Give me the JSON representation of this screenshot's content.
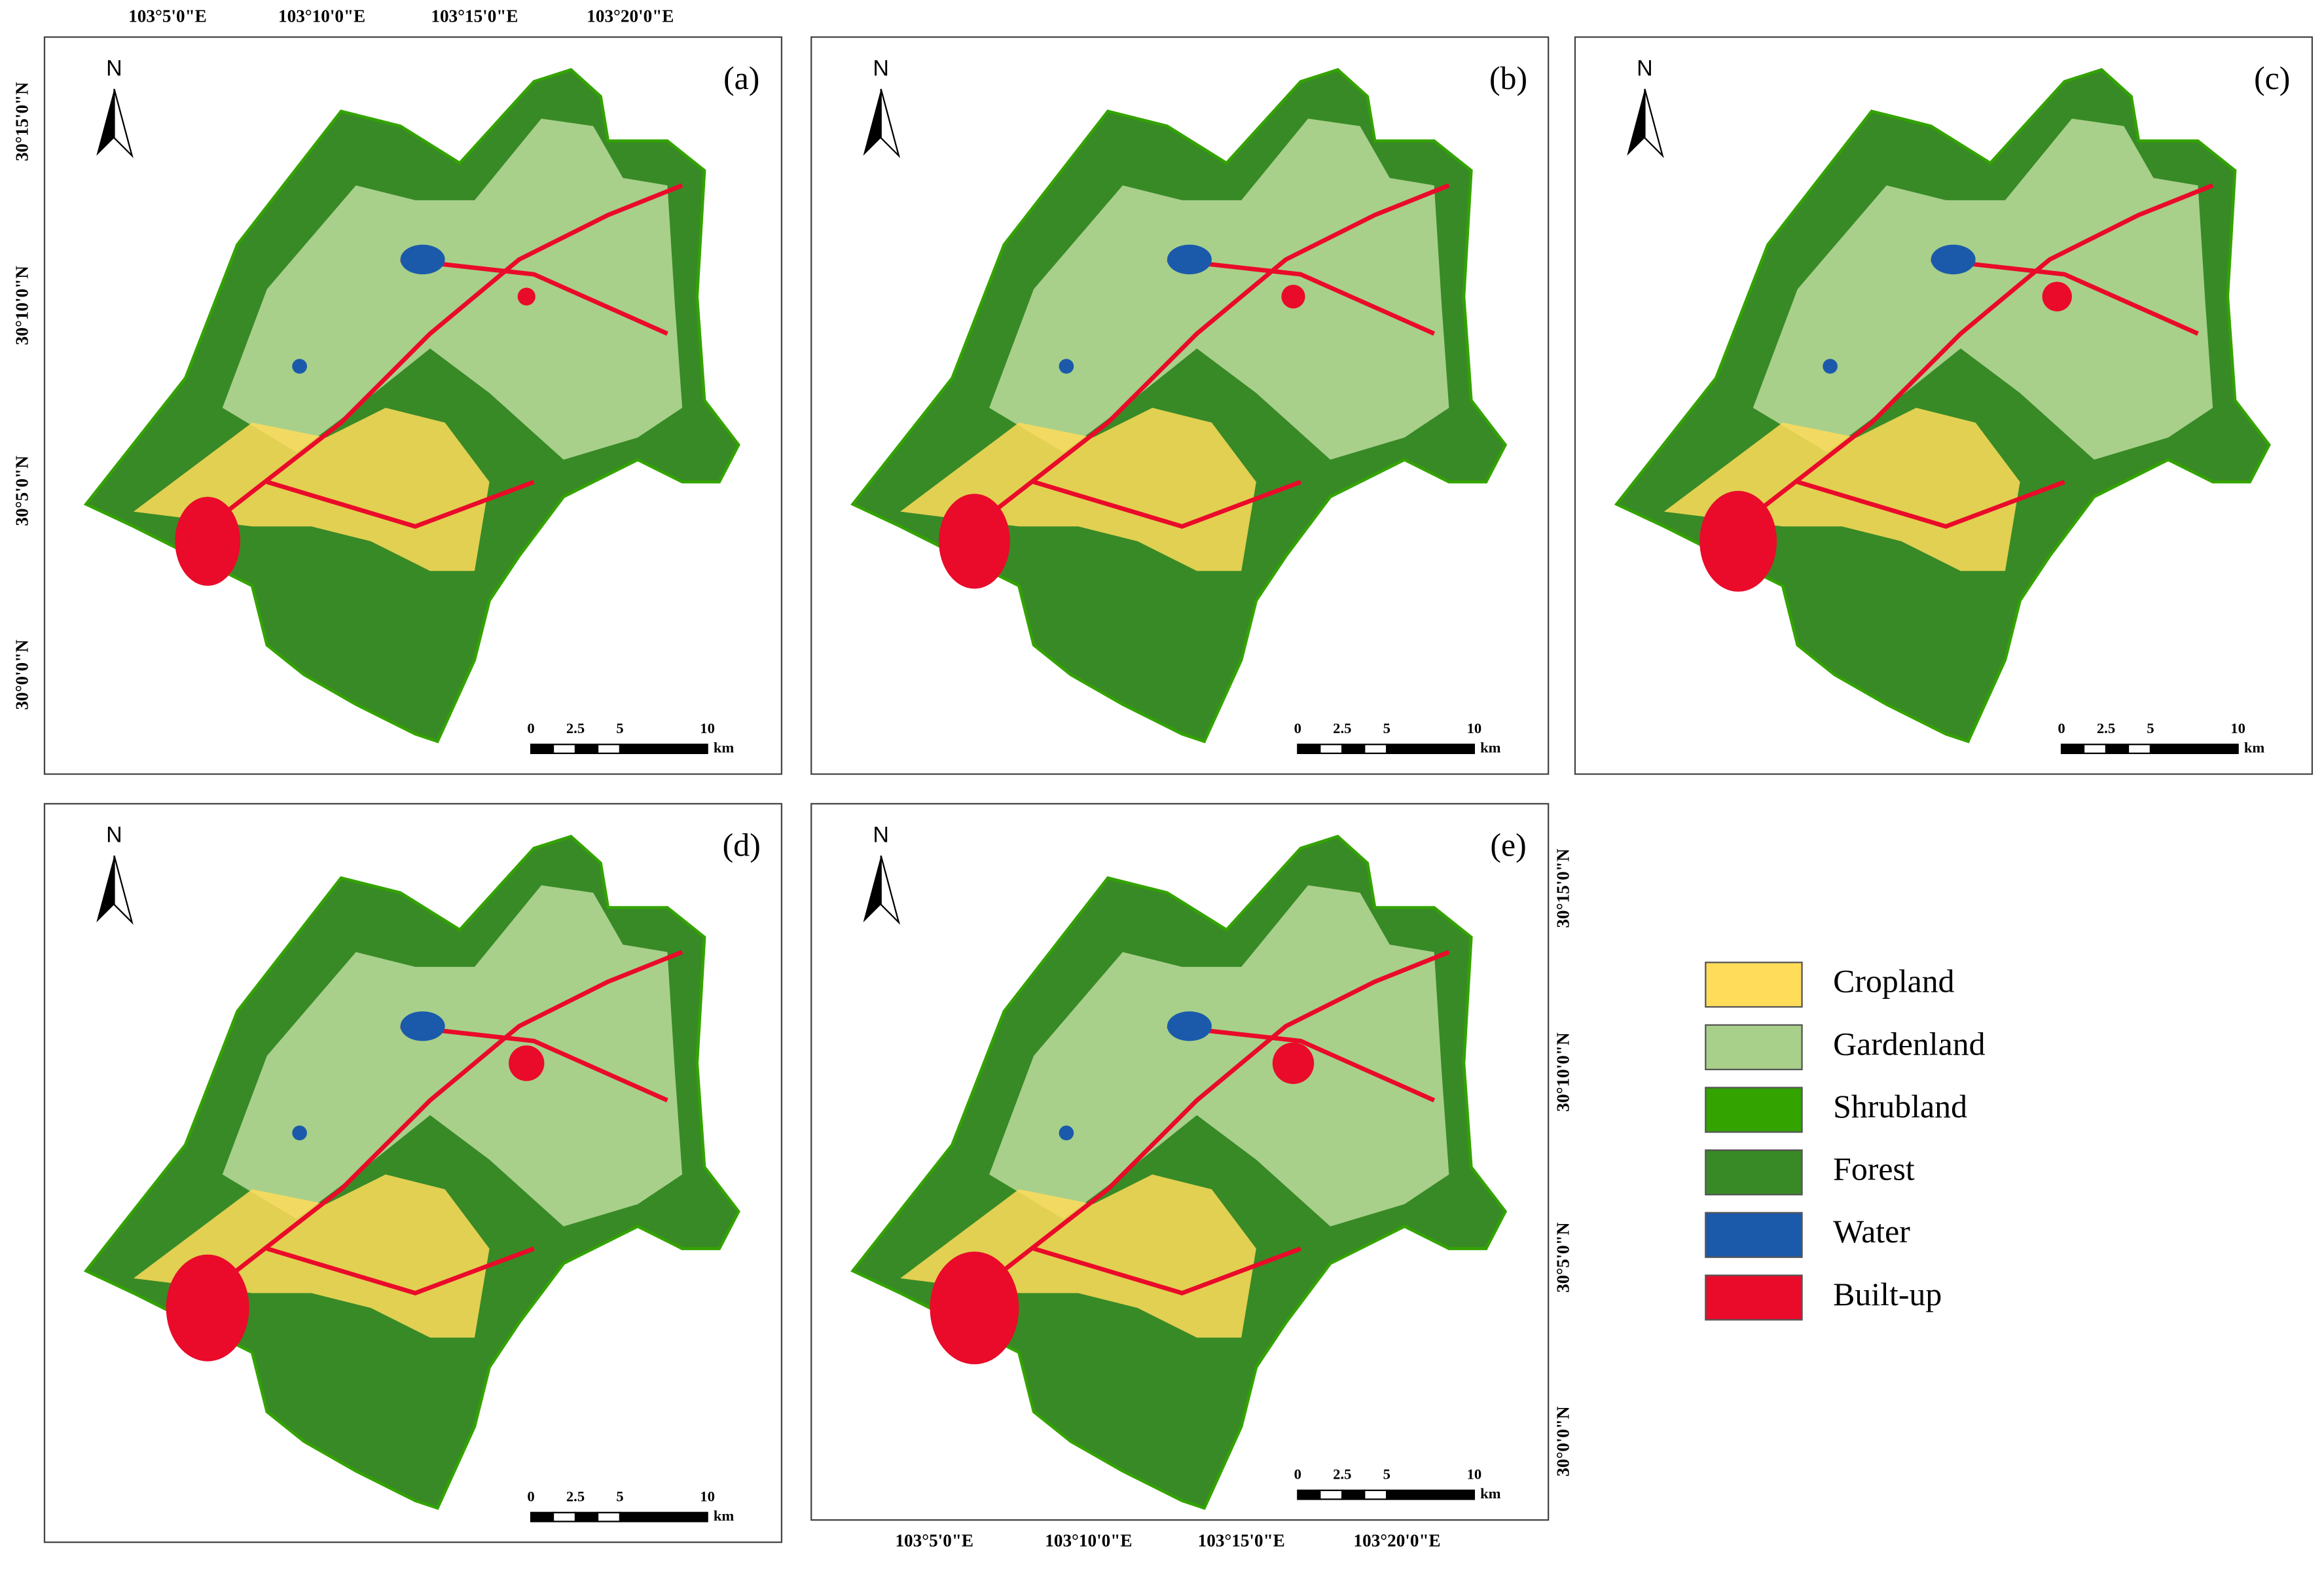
{
  "panels": [
    {
      "label": "(a)"
    },
    {
      "label": "(b)"
    },
    {
      "label": "(c)"
    },
    {
      "label": "(d)"
    },
    {
      "label": "(e)"
    }
  ],
  "north": "N",
  "scale_bar": {
    "labels": [
      "0",
      "2.5",
      "5",
      "10"
    ],
    "unit": "km"
  },
  "longitude_labels": [
    "103°5'0\"E",
    "103°10'0\"E",
    "103°15'0\"E",
    "103°20'0\"E"
  ],
  "latitude_labels": [
    "30°15'0\"N",
    "30°10'0\"N",
    "30°5'0\"N",
    "30°0'0\"N"
  ],
  "legend": [
    {
      "name": "Cropland",
      "color": "#ffdc5a"
    },
    {
      "name": "Gardenland",
      "color": "#a8d08a"
    },
    {
      "name": "Shrubland",
      "color": "#33a300"
    },
    {
      "name": "Forest",
      "color": "#388a26"
    },
    {
      "name": "Water",
      "color": "#1b5aab"
    },
    {
      "name": "Built-up",
      "color": "#ea0a2a"
    }
  ]
}
